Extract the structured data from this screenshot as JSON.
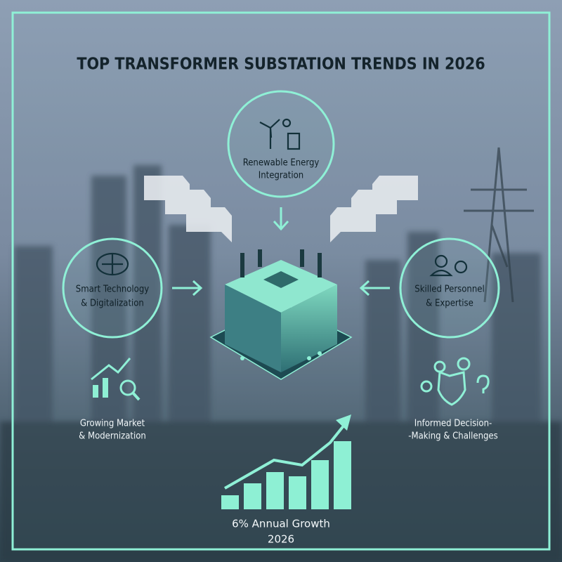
{
  "header": {
    "title": "TOP TRANSFORMER SUBSTATION TRENDS IN 2026"
  },
  "nodes": [
    {
      "label_lines": [
        "Renewable Energy",
        "Integration"
      ]
    },
    {
      "label_lines": [
        "Smart Technology",
        "& Digitalization"
      ]
    },
    {
      "label_lines": [
        "Skilled Personnel",
        "& Expertise"
      ]
    },
    {
      "label_lines": [
        "Growing Market",
        "& Modernization"
      ]
    },
    {
      "label_lines": [
        "Informed Decision-",
        "-Making & Challenges"
      ]
    }
  ],
  "growth": {
    "label_lines": [
      "6% Annual Growth",
      "2026"
    ]
  }
}
